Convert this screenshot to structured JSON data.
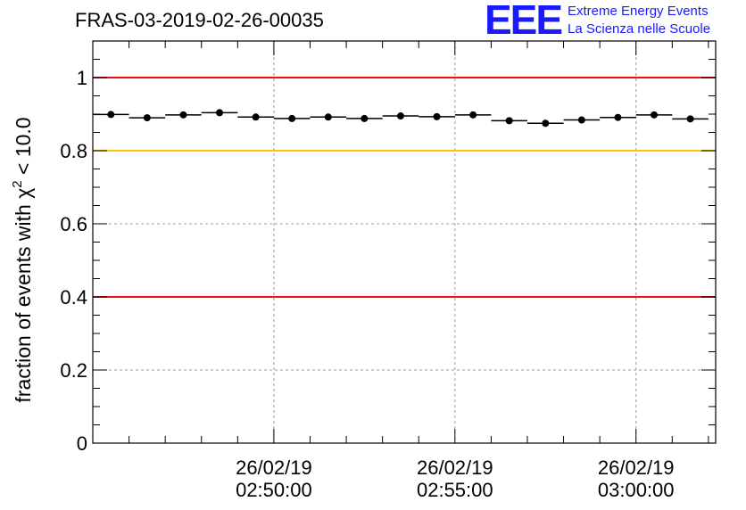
{
  "header": {
    "run_title": "FRAS-03-2019-02-26-00035"
  },
  "logo": {
    "mark": "EEE",
    "line1": "Extreme Energy Events",
    "line2": "La Scienza nelle Scuole",
    "color": "#1a1aff"
  },
  "chart_data": {
    "type": "scatter",
    "title": "FRAS-03-2019-02-26-00035",
    "xlabel": "",
    "ylabel_main": "fraction of events with χ",
    "ylabel_sup": "2",
    "ylabel_tail": " < 10.0",
    "x_unit": "minutes from 02:45:00",
    "xlim": [
      0,
      17.2
    ],
    "ylim": [
      0,
      1.1
    ],
    "yticks": [
      0,
      0.2,
      0.4,
      0.6,
      0.8,
      1
    ],
    "ytick_labels": [
      "0",
      "0.2",
      "0.4",
      "0.6",
      "0.8",
      "1"
    ],
    "xticks": [
      {
        "x": 5,
        "date": "26/02/19",
        "time": "02:50:00"
      },
      {
        "x": 10,
        "date": "26/02/19",
        "time": "02:55:00"
      },
      {
        "x": 15,
        "date": "26/02/19",
        "time": "03:00:00"
      }
    ],
    "grid": true,
    "reference_lines": [
      {
        "y": 1.0,
        "color": "#ee1111"
      },
      {
        "y": 0.8,
        "color": "#ffc000"
      },
      {
        "y": 0.4,
        "color": "#ee1111"
      }
    ],
    "series": [
      {
        "name": "fraction",
        "bin_width": 1.0,
        "x": [
          0.5,
          1.5,
          2.5,
          3.5,
          4.5,
          5.5,
          6.5,
          7.5,
          8.5,
          9.5,
          10.5,
          11.5,
          12.5,
          13.5,
          14.5,
          15.5,
          16.5
        ],
        "values": [
          0.899,
          0.89,
          0.898,
          0.904,
          0.892,
          0.888,
          0.892,
          0.888,
          0.895,
          0.893,
          0.898,
          0.882,
          0.875,
          0.884,
          0.891,
          0.898,
          0.887
        ]
      }
    ]
  }
}
